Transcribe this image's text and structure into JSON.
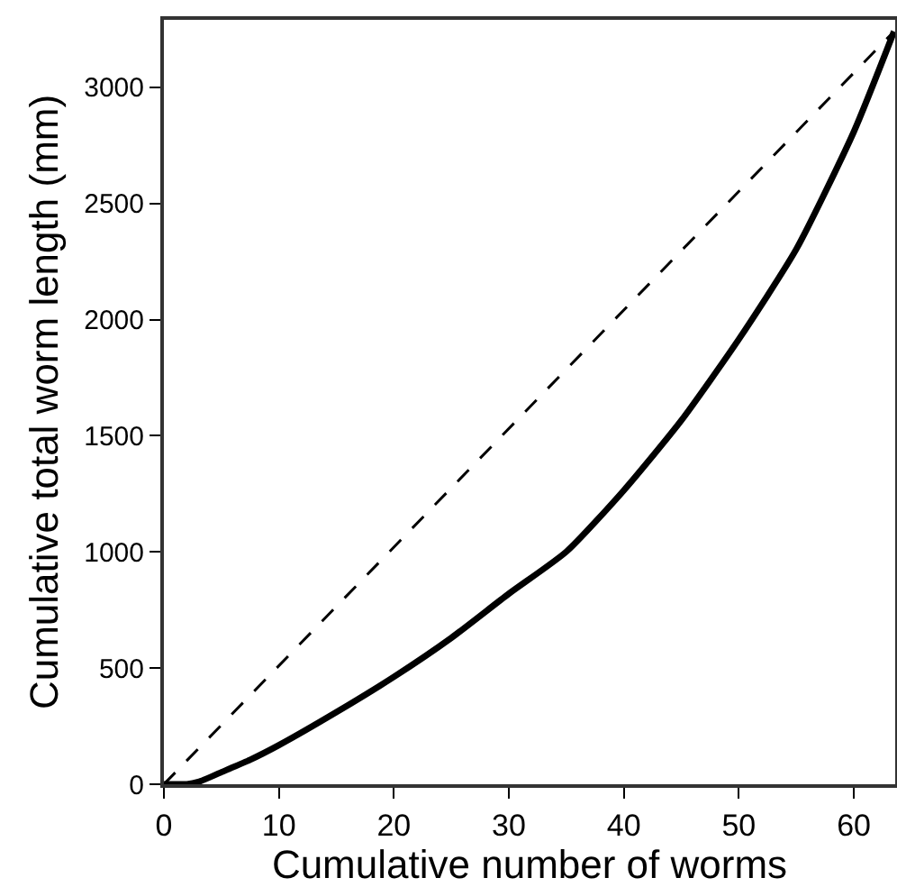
{
  "chart_data": {
    "type": "line",
    "xlabel": "Cumulative number of worms",
    "ylabel": "Cumulative total worm length (mm)",
    "xlim": [
      0,
      63.6
    ],
    "ylim": [
      0,
      3290
    ],
    "xticks": [
      0,
      10,
      20,
      30,
      40,
      50,
      60
    ],
    "yticks": [
      0,
      500,
      1000,
      1500,
      2000,
      2500,
      3000
    ],
    "grid": false,
    "marker": "none",
    "series": [
      {
        "color": "#000000",
        "line_style": "solid",
        "x": [
          0,
          1,
          2,
          3,
          5,
          7.5,
          10,
          15,
          20,
          25,
          30,
          35,
          40,
          45,
          50,
          55,
          60,
          63.5
        ],
        "values": [
          0,
          0,
          0,
          10,
          52,
          105,
          168,
          310,
          462,
          630,
          820,
          1001,
          1265,
          1566,
          1915,
          2303,
          2808,
          3240
        ]
      },
      {
        "color": "#000000",
        "line_style": "dashed",
        "x": [
          0,
          63.3
        ],
        "values": [
          0,
          3230
        ]
      }
    ]
  }
}
